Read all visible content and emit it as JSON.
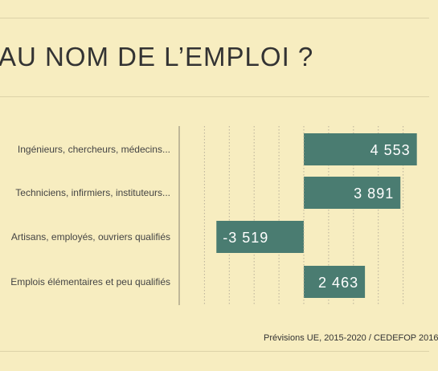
{
  "slide": {
    "title": "AU NOM DE L’EMPLOI ?",
    "source": "Prévisions UE, 2015-2020 / CEDEFOP 2016"
  },
  "colors": {
    "background": "#f7edc0",
    "bar": "#4a7c71",
    "label_text": "#ffffff",
    "category_text": "#444444",
    "axis": "#8a8470",
    "grid": "#b8b09a"
  },
  "chart_data": {
    "type": "bar",
    "orientation": "horizontal",
    "categories": [
      "Ingénieurs, chercheurs, médecins...",
      "Techniciens, infirmiers, instituteurs...",
      "Artisans, employés,  ouvriers qualifiés",
      "Emplois élémentaires et peu qualifiés"
    ],
    "values": [
      4553,
      3891,
      -3519,
      2463
    ],
    "value_labels": [
      "4 553",
      "3 891",
      "-3 519",
      "2 463"
    ],
    "xlim": [
      -5000,
      5000
    ],
    "grid": true,
    "title": "",
    "xlabel": "",
    "ylabel": ""
  }
}
